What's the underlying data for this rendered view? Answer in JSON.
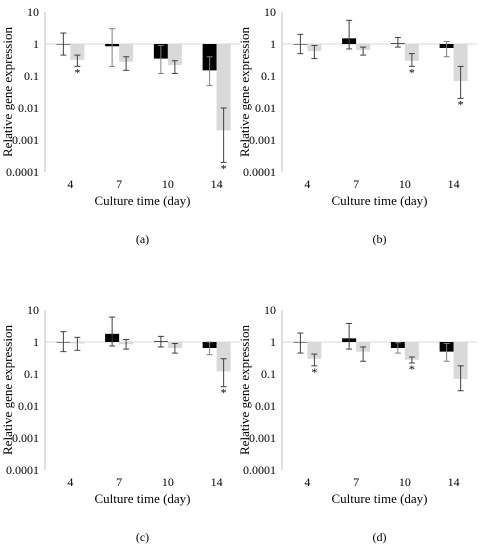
{
  "figure": {
    "colors": {
      "black_series": "#000000",
      "grey_series": "#d9d9d9",
      "error_bar": "#404040",
      "gridline": "#d9d9d9",
      "asterisk": "#595959"
    }
  },
  "chart_data": [
    {
      "type": "bar",
      "panel_label": "(a)",
      "xlabel": "Culture time (day)",
      "ylabel": "Relative gene expression",
      "yscale": "log",
      "ylim": [
        0.0001,
        10
      ],
      "ytick_labels": [
        "10",
        "1",
        "0.1",
        "0.01",
        "0.001",
        "0.0001"
      ],
      "categories": [
        "4",
        "7",
        "10",
        "14"
      ],
      "series": [
        {
          "color": "#000000",
          "values": [
            1.0,
            0.85,
            0.35,
            0.15
          ],
          "error_low": [
            0.45,
            0.2,
            0.12,
            0.05
          ],
          "error_high": [
            2.2,
            3.0,
            0.9,
            0.4
          ]
        },
        {
          "color": "#d9d9d9",
          "values": [
            0.32,
            0.28,
            0.22,
            0.002
          ],
          "error_low": [
            0.2,
            0.15,
            0.12,
            0.0002
          ],
          "error_high": [
            0.45,
            0.4,
            0.3,
            0.01
          ]
        }
      ],
      "significance": [
        {
          "series": 1,
          "category": "4",
          "label": "*"
        },
        {
          "series": 1,
          "category": "14",
          "label": "*"
        }
      ]
    },
    {
      "type": "bar",
      "panel_label": "(b)",
      "xlabel": "Culture time (day)",
      "ylabel": "Relative gene expression",
      "yscale": "log",
      "ylim": [
        0.0001,
        10
      ],
      "ytick_labels": [
        "10",
        "1",
        "0.1",
        "0.01",
        "0.001",
        "0.0001"
      ],
      "categories": [
        "4",
        "7",
        "10",
        "14"
      ],
      "series": [
        {
          "color": "#000000",
          "values": [
            1.0,
            1.5,
            1.05,
            0.75
          ],
          "error_low": [
            0.5,
            0.7,
            0.8,
            0.4
          ],
          "error_high": [
            2.0,
            5.5,
            1.6,
            1.2
          ]
        },
        {
          "color": "#d9d9d9",
          "values": [
            0.6,
            0.65,
            0.3,
            0.07
          ],
          "error_low": [
            0.35,
            0.45,
            0.2,
            0.02
          ],
          "error_high": [
            0.9,
            0.8,
            0.5,
            0.2
          ]
        }
      ],
      "significance": [
        {
          "series": 1,
          "category": "10",
          "label": "*"
        },
        {
          "series": 1,
          "category": "14",
          "label": "*"
        }
      ]
    },
    {
      "type": "bar",
      "panel_label": "(c)",
      "xlabel": "Culture time (day)",
      "ylabel": "Relative gene expression",
      "yscale": "log",
      "ylim": [
        0.0001,
        10
      ],
      "ytick_labels": [
        "10",
        "1",
        "0.1",
        "0.01",
        "0.001",
        "0.0001"
      ],
      "categories": [
        "4",
        "7",
        "10",
        "14"
      ],
      "series": [
        {
          "color": "#000000",
          "values": [
            1.0,
            1.8,
            1.05,
            0.65
          ],
          "error_low": [
            0.5,
            0.75,
            0.7,
            0.4
          ],
          "error_high": [
            2.1,
            6.0,
            1.5,
            1.0
          ]
        },
        {
          "color": "#d9d9d9",
          "values": [
            0.9,
            0.85,
            0.65,
            0.12
          ],
          "error_low": [
            0.55,
            0.6,
            0.45,
            0.04
          ],
          "error_high": [
            1.4,
            1.2,
            0.9,
            0.3
          ]
        }
      ],
      "significance": [
        {
          "series": 1,
          "category": "14",
          "label": "*"
        }
      ]
    },
    {
      "type": "bar",
      "panel_label": "(d)",
      "xlabel": "Culture time (day)",
      "ylabel": "Relative gene expression",
      "yscale": "log",
      "ylim": [
        0.0001,
        10
      ],
      "ytick_labels": [
        "10",
        "1",
        "0.1",
        "0.01",
        "0.001",
        "0.0001"
      ],
      "categories": [
        "4",
        "7",
        "10",
        "14"
      ],
      "series": [
        {
          "color": "#000000",
          "values": [
            1.0,
            1.3,
            0.65,
            0.5
          ],
          "error_low": [
            0.45,
            0.6,
            0.45,
            0.25
          ],
          "error_high": [
            1.9,
            3.8,
            0.95,
            0.9
          ]
        },
        {
          "color": "#d9d9d9",
          "values": [
            0.3,
            0.5,
            0.28,
            0.07
          ],
          "error_low": [
            0.18,
            0.25,
            0.22,
            0.03
          ],
          "error_high": [
            0.42,
            0.7,
            0.34,
            0.18
          ]
        }
      ],
      "significance": [
        {
          "series": 1,
          "category": "4",
          "label": "*"
        },
        {
          "series": 1,
          "category": "10",
          "label": "*"
        }
      ]
    }
  ]
}
